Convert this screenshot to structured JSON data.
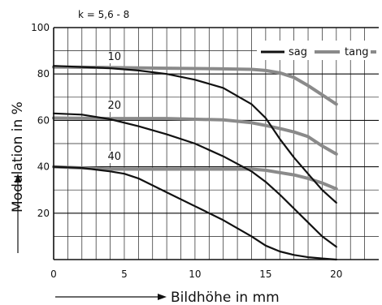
{
  "chart_data": {
    "type": "line",
    "title": "",
    "annotation": "k = 5,6 - 8",
    "xlabel": "Bildhöhe in mm",
    "ylabel": "Modulation in %",
    "xlim": [
      0,
      23
    ],
    "ylim": [
      0,
      100
    ],
    "x_ticks": [
      0,
      5,
      10,
      15,
      20
    ],
    "y_ticks": [
      20,
      40,
      60,
      80,
      100
    ],
    "grid": true,
    "legend_position": "top-right",
    "legend": [
      {
        "name": "sag",
        "color": "#111111"
      },
      {
        "name": "tang",
        "color": "#8a8a8a"
      }
    ],
    "curve_labels": [
      {
        "text": "10",
        "x": 4.3,
        "y": 86
      },
      {
        "text": "20",
        "x": 4.3,
        "y": 65
      },
      {
        "text": "40",
        "x": 4.3,
        "y": 43
      }
    ],
    "series": [
      {
        "name": "10 sag",
        "style": "sag",
        "x": [
          0,
          2,
          4,
          6,
          8,
          10,
          12,
          14,
          15,
          16,
          17,
          18,
          19,
          20
        ],
        "y": [
          83.5,
          83,
          82.5,
          81.5,
          80,
          77.5,
          74,
          67,
          61,
          52,
          44,
          37,
          30,
          24.5
        ]
      },
      {
        "name": "10 tang",
        "style": "tang",
        "x": [
          0,
          4,
          8,
          12,
          14,
          15,
          16,
          17,
          18,
          19,
          20
        ],
        "y": [
          83,
          82.8,
          82.5,
          82.2,
          82,
          81.5,
          80.5,
          78.5,
          75,
          71,
          67
        ]
      },
      {
        "name": "20 sag",
        "style": "sag",
        "x": [
          0,
          2,
          4,
          6,
          8,
          10,
          12,
          14,
          15,
          16,
          17,
          18,
          19,
          20
        ],
        "y": [
          63,
          62.5,
          60.5,
          57.5,
          54,
          50,
          44.5,
          38,
          33.5,
          28,
          22,
          16,
          10,
          5.5
        ]
      },
      {
        "name": "20 tang",
        "style": "tang",
        "x": [
          0,
          4,
          8,
          12,
          14,
          15,
          16,
          17,
          18,
          19,
          20
        ],
        "y": [
          61,
          60.8,
          60.8,
          60.2,
          59,
          57.8,
          56.5,
          55,
          53,
          49,
          45.5
        ]
      },
      {
        "name": "40 sag",
        "style": "sag",
        "x": [
          0,
          2,
          4,
          5,
          6,
          8,
          10,
          12,
          14,
          15,
          16,
          17,
          18,
          19,
          20
        ],
        "y": [
          40,
          39.5,
          38,
          37,
          35,
          29,
          23,
          17,
          10,
          6,
          3.5,
          2,
          1,
          0.5,
          0
        ]
      },
      {
        "name": "40 tang",
        "style": "tang",
        "x": [
          0,
          4,
          8,
          12,
          14,
          15,
          16,
          17,
          18,
          19,
          20
        ],
        "y": [
          40,
          39,
          39,
          39,
          39,
          38.5,
          37.5,
          36.5,
          35,
          33,
          30.5
        ]
      }
    ]
  }
}
